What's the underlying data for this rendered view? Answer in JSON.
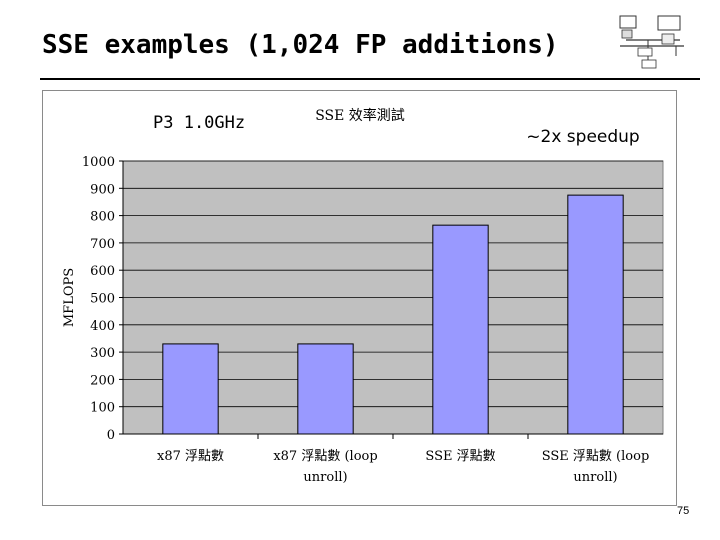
{
  "slide": {
    "title": "SSE examples (1,024 FP additions)",
    "page_number": "75"
  },
  "chart_data": {
    "type": "bar",
    "title": "SSE 效率測試",
    "ylabel": "MFLOPS",
    "xlabel": "",
    "categories": [
      "x87 浮點數",
      "x87 浮點數 (loop unroll)",
      "SSE 浮點數",
      "SSE 浮點數 (loop unroll)"
    ],
    "category_lines": [
      [
        "x87 浮點數"
      ],
      [
        "x87 浮點數 (loop",
        "unroll)"
      ],
      [
        "SSE 浮點數"
      ],
      [
        "SSE 浮點數 (loop",
        "unroll)"
      ]
    ],
    "values": [
      330,
      330,
      765,
      875
    ],
    "ylim": [
      0,
      1000
    ],
    "yticks": [
      0,
      100,
      200,
      300,
      400,
      500,
      600,
      700,
      800,
      900,
      1000
    ],
    "grid": true,
    "bar_color": "#9999ff",
    "plot_bg": "#c0c0c0",
    "annotations": {
      "left": "P3 1.0GHz",
      "right": "~2x speedup"
    }
  }
}
